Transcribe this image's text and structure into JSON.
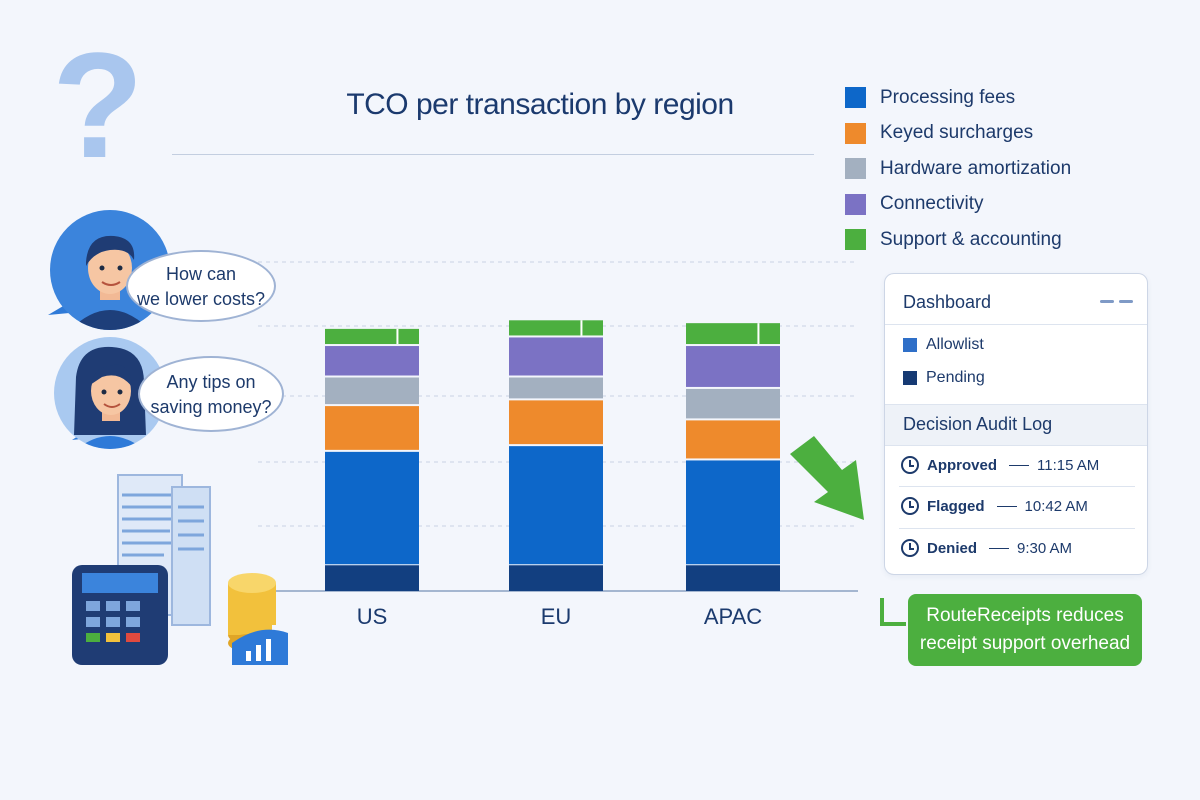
{
  "chart_data": {
    "type": "bar",
    "stacked": true,
    "title": "TCO per transaction by region",
    "categories": [
      "US",
      "EU",
      "APAC"
    ],
    "series": [
      {
        "name": "Processing fees",
        "color": "#0d67c9",
        "values": [
          0.4,
          0.42,
          0.37
        ]
      },
      {
        "name": "Keyed surcharges",
        "color": "#ee8a2c",
        "values": [
          0.16,
          0.16,
          0.14
        ]
      },
      {
        "name": "Hardware amortization",
        "color": "#a3b0c0",
        "values": [
          0.1,
          0.08,
          0.11
        ]
      },
      {
        "name": "Connectivity",
        "color": "#7b72c4",
        "values": [
          0.11,
          0.14,
          0.15
        ]
      },
      {
        "name": "Support & accounting",
        "color": "#4caf3f",
        "values": [
          0.06,
          0.06,
          0.08
        ]
      }
    ],
    "base_segment_color": "#123f80",
    "base_segment_values": [
      0.09,
      0.09,
      0.09
    ],
    "axis_labels_shown": false,
    "gridlines": "dashed",
    "legend": "top-right"
  },
  "decor": {
    "question_mark": "?",
    "bubble1": {
      "line1": "How can",
      "line2": "we lower costs?"
    },
    "bubble2": {
      "line1": "Any tips on",
      "line2": "saving money?"
    }
  },
  "dashboard": {
    "title": "Dashboard",
    "items": [
      {
        "label": "Allowlist",
        "color": "#2f6fc8"
      },
      {
        "label": "Pending",
        "color": "#163a73"
      }
    ],
    "audit_title": "Decision Audit Log",
    "log": [
      {
        "status": "Approved",
        "time": "11:15 AM"
      },
      {
        "status": "Flagged",
        "time": "10:42 AM"
      },
      {
        "status": "Denied",
        "time": "9:30 AM"
      }
    ]
  },
  "callout": {
    "line1": "RouteReceipts reduces",
    "line2": "receipt support overhead"
  }
}
